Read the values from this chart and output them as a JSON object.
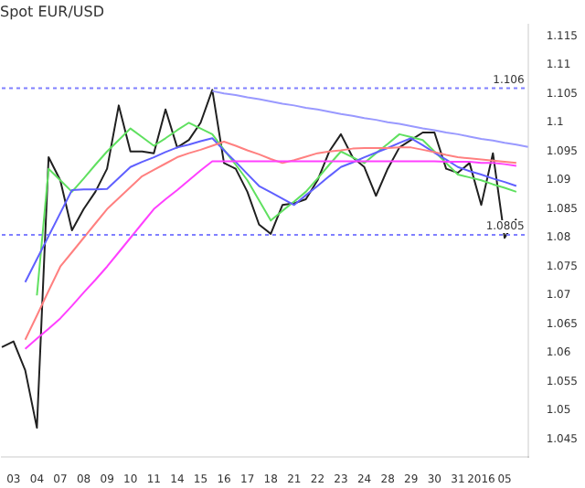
{
  "chart_data": {
    "type": "line",
    "title": "Spot EUR/USD",
    "marker": "none",
    "legend": false,
    "grid": false,
    "categories": [
      null,
      "03",
      null,
      "04",
      null,
      "07",
      null,
      "08",
      null,
      "09",
      null,
      "10",
      null,
      "11",
      null,
      "14",
      null,
      "15",
      null,
      "16",
      null,
      "17",
      null,
      "18",
      null,
      "21",
      null,
      "22",
      null,
      "23",
      null,
      "24",
      null,
      "28",
      null,
      "29",
      null,
      "30",
      null,
      "31",
      null,
      "2016",
      null,
      "05",
      null,
      null
    ],
    "ylim": [
      1.042,
      1.117
    ],
    "yticks": [
      1.045,
      1.05,
      1.055,
      1.06,
      1.065,
      1.07,
      1.075,
      1.08,
      1.085,
      1.09,
      1.095,
      1.1,
      1.105,
      1.11,
      1.115
    ],
    "ref_lines": [
      {
        "axis": "y",
        "value": 1.106,
        "label": "1.106",
        "color": "#8080ff",
        "line_style": "dotted"
      },
      {
        "axis": "y",
        "value": 1.0805,
        "label": "1.0805",
        "color": "#8080ff",
        "line_style": "dotted"
      }
    ],
    "series": [
      {
        "color": "#9999ff",
        "line_style": "solid",
        "values": [
          null,
          null,
          null,
          null,
          null,
          null,
          null,
          null,
          null,
          null,
          null,
          null,
          null,
          null,
          null,
          null,
          null,
          null,
          1.1055,
          1.1051,
          1.1048,
          1.1044,
          1.1041,
          1.1037,
          1.1033,
          1.103,
          1.1026,
          1.1023,
          1.1019,
          1.1015,
          1.1012,
          1.1008,
          1.1005,
          1.1001,
          1.0998,
          1.0994,
          1.099,
          1.0987,
          1.0983,
          1.098,
          1.0976,
          1.0972,
          1.0969,
          1.0965,
          1.0962,
          1.0958
        ]
      },
      {
        "color": "#ff40ff",
        "values": [
          null,
          null,
          1.0607,
          1.0625,
          1.0642,
          1.066,
          1.0682,
          1.0705,
          1.0727,
          1.075,
          1.0775,
          1.08,
          1.0825,
          1.085,
          1.0867,
          1.0883,
          1.09,
          1.0917,
          1.0933,
          1.0933,
          1.0933,
          1.0933,
          1.0933,
          1.0933,
          1.0933,
          1.0933,
          1.0933,
          1.0933,
          1.0933,
          1.0933,
          1.0933,
          1.0933,
          1.0933,
          1.0933,
          1.0933,
          1.0933,
          1.0933,
          1.0933,
          1.0932,
          1.0932,
          1.0932,
          1.093,
          1.093,
          1.0928,
          1.0925,
          null
        ]
      },
      {
        "color": "#ff8080",
        "values": [
          null,
          null,
          1.0623,
          1.0665,
          1.0708,
          1.075,
          1.0775,
          1.08,
          1.0825,
          1.085,
          1.0869,
          1.0888,
          1.0907,
          1.0918,
          1.0929,
          1.094,
          1.0947,
          1.0953,
          1.096,
          1.0967,
          1.096,
          1.0952,
          1.0945,
          1.0937,
          1.093,
          1.0935,
          1.0941,
          1.0947,
          1.095,
          1.0952,
          1.0955,
          1.0956,
          1.0956,
          1.0956,
          1.0957,
          1.0957,
          1.0953,
          1.0949,
          1.0944,
          1.094,
          1.0938,
          1.0936,
          1.0934,
          1.0932,
          1.093,
          null
        ]
      },
      {
        "color": "#6060ff",
        "values": [
          null,
          null,
          1.0723,
          1.0763,
          1.0803,
          1.0843,
          1.0883,
          1.0884,
          1.0884,
          1.0885,
          1.0904,
          1.0923,
          1.0932,
          1.094,
          1.0949,
          1.0957,
          1.0962,
          1.0968,
          1.0973,
          1.0952,
          1.0932,
          1.0911,
          1.089,
          1.0879,
          1.0868,
          1.0857,
          1.0874,
          1.089,
          1.0907,
          1.0923,
          1.0931,
          1.094,
          1.0948,
          1.0956,
          1.0965,
          1.0973,
          1.0961,
          1.0948,
          1.0936,
          1.0923,
          1.0916,
          1.091,
          1.0903,
          1.0897,
          1.089,
          null
        ]
      },
      {
        "color": "#60e060",
        "values": [
          null,
          null,
          null,
          1.07,
          1.092,
          1.09,
          1.088,
          1.0903,
          1.0927,
          1.095,
          1.097,
          1.099,
          1.0975,
          1.096,
          1.0973,
          1.0987,
          1.1,
          1.099,
          1.098,
          1.0953,
          1.0927,
          1.09,
          1.0865,
          1.083,
          1.0847,
          1.0863,
          1.088,
          1.0903,
          1.0927,
          1.095,
          1.094,
          1.093,
          1.0947,
          1.0963,
          1.098,
          1.0975,
          1.097,
          1.095,
          1.093,
          1.091,
          1.0905,
          1.09,
          1.0893,
          1.0887,
          1.088,
          null
        ]
      },
      {
        "color": "#202020",
        "values": [
          1.061,
          1.062,
          1.057,
          1.047,
          1.094,
          1.09,
          1.0813,
          1.085,
          1.088,
          1.092,
          1.103,
          1.095,
          1.095,
          1.0947,
          1.1023,
          1.0957,
          1.097,
          1.1,
          1.1057,
          1.093,
          1.092,
          1.088,
          1.0823,
          1.0807,
          1.0857,
          1.086,
          1.0867,
          1.09,
          1.095,
          1.098,
          1.094,
          1.0923,
          1.0873,
          1.092,
          1.0957,
          1.097,
          1.0983,
          1.0983,
          1.092,
          1.0913,
          1.093,
          1.0857,
          1.0947,
          1.08,
          1.0833,
          null
        ]
      }
    ]
  }
}
